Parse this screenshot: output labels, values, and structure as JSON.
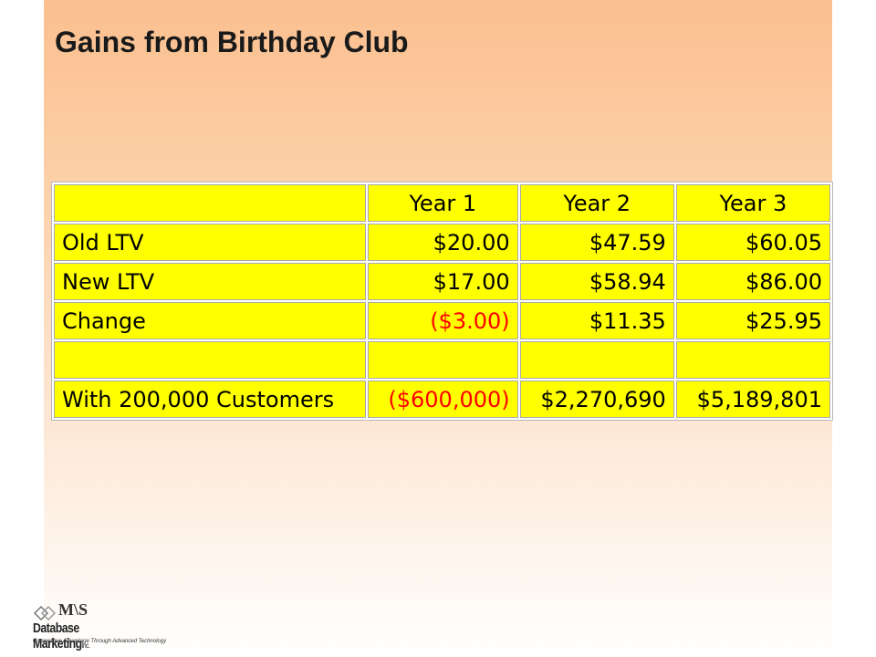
{
  "slide": {
    "title": "Gains from Birthday Club"
  },
  "table": {
    "header": [
      "",
      "Year 1",
      "Year 2",
      "Year 3"
    ],
    "rows": [
      {
        "label": "Old LTV",
        "values": [
          "$20.00",
          "$47.59",
          "$60.05"
        ]
      },
      {
        "label": "New LTV",
        "values": [
          "$17.00",
          "$58.94",
          "$86.00"
        ]
      },
      {
        "label": "Change",
        "values": [
          "($3.00)",
          "$11.35",
          "$25.95"
        ]
      },
      {
        "label": "",
        "values": [
          "",
          "",
          ""
        ]
      },
      {
        "label": "With 200,000 Customers",
        "values": [
          "($600,000)",
          "$2,270,690",
          "$5,189,801"
        ]
      }
    ],
    "cell_color": "#ffff00",
    "negative_color": "#ff0000"
  },
  "logo": {
    "mark": "M\\S",
    "name": "Database Marketing",
    "suffix": "Inc.",
    "tagline": "Competitive Advantage Through Advanced Technology"
  }
}
